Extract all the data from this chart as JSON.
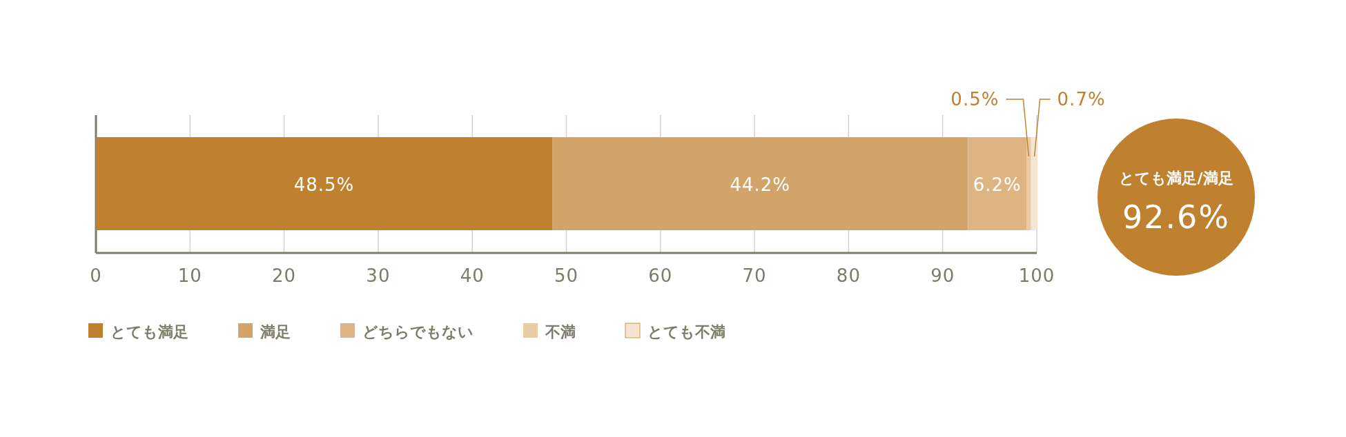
{
  "chart_data": {
    "type": "bar",
    "orientation": "horizontal",
    "stacked": true,
    "categories": [
      null
    ],
    "series": [
      {
        "name": "とても満足",
        "color": "#bf8030",
        "values": [
          48.5
        ],
        "value_labels": [
          "48.5%"
        ]
      },
      {
        "name": "満足",
        "color": "#d2a46a",
        "values": [
          44.2
        ],
        "value_labels": [
          "44.2%"
        ]
      },
      {
        "name": "どちらでもない",
        "color": "#ddb582",
        "values": [
          6.2
        ],
        "value_labels": [
          "6.2%"
        ]
      },
      {
        "name": "不満",
        "color": "#e9cca4",
        "values": [
          0.5
        ],
        "value_labels": [
          "0.5%"
        ]
      },
      {
        "name": "とても不満",
        "color": "#f4e5d3",
        "values": [
          0.7
        ],
        "value_labels": [
          "0.7%"
        ]
      }
    ],
    "xlim": [
      0,
      100
    ],
    "xticks": [
      0,
      10,
      20,
      30,
      40,
      50,
      60,
      70,
      80,
      90,
      100
    ],
    "grid": "x",
    "legend": "bottom",
    "annotations": [
      "とても満足/満足",
      "92.6%"
    ]
  }
}
